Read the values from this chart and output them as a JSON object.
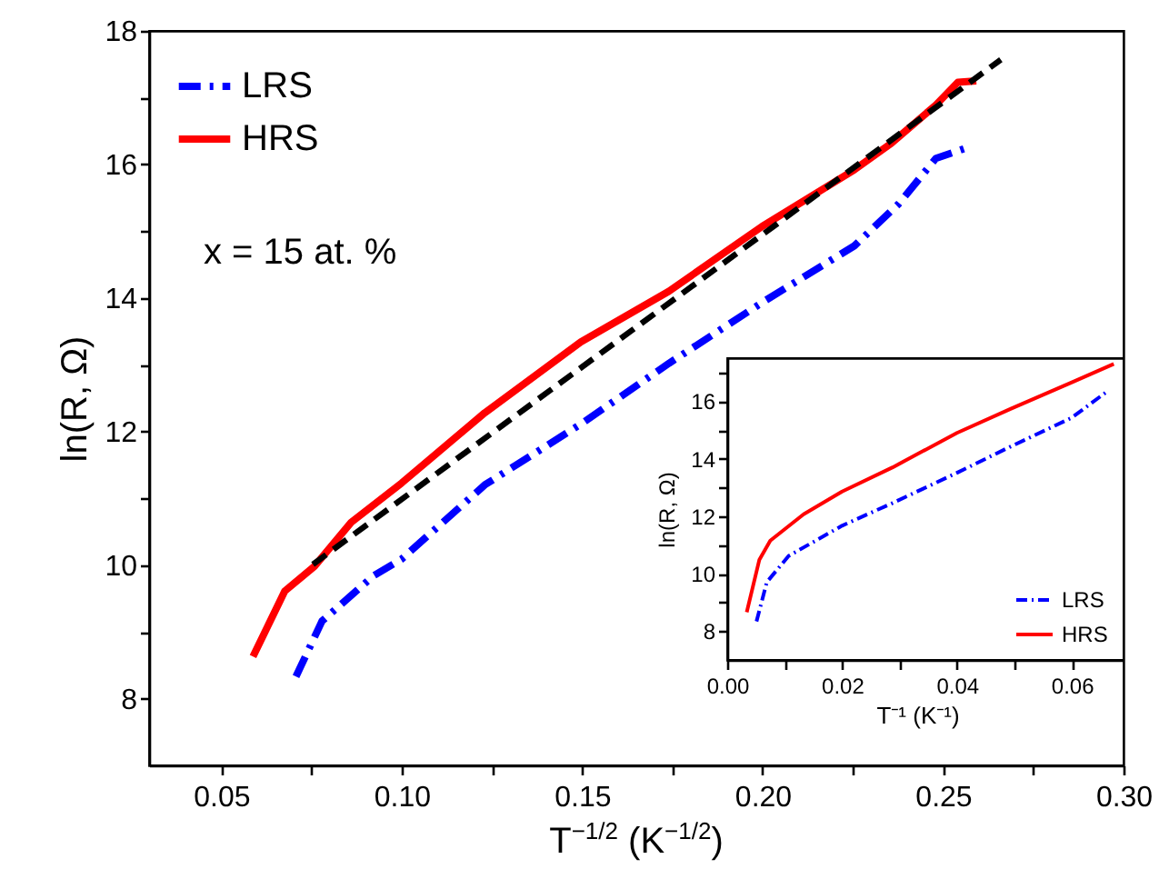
{
  "chart_data": [
    {
      "type": "line",
      "xlabel": "T$^{−1/2}$ (K$^{−1/2}$)",
      "ylabel": "ln(R, Ω)",
      "annotations": [
        "x = 15 at. %"
      ],
      "legend": "top left",
      "xlim": [
        0.03,
        0.3
      ],
      "ylim": [
        7,
        18
      ],
      "xticks": [
        {
          "value": 0.05,
          "label": "0.05"
        },
        {
          "value": 0.075,
          "label": null
        },
        {
          "value": 0.1,
          "label": "0.10"
        },
        {
          "value": 0.125,
          "label": null
        },
        {
          "value": 0.15,
          "label": "0.15"
        },
        {
          "value": 0.175,
          "label": null
        },
        {
          "value": 0.2,
          "label": "0.20"
        },
        {
          "value": 0.225,
          "label": null
        },
        {
          "value": 0.25,
          "label": "0.25"
        },
        {
          "value": 0.275,
          "label": null
        },
        {
          "value": 0.3,
          "label": "0.30"
        }
      ],
      "yticks": [
        8,
        {
          "value": 9,
          "label": null
        },
        10,
        {
          "value": 11,
          "label": null
        },
        12,
        {
          "value": 13,
          "label": null
        },
        14,
        {
          "value": 15,
          "label": null
        },
        16,
        {
          "value": 17,
          "label": null
        },
        18
      ],
      "series": [
        {
          "name": "LRS",
          "color": "#0000ff",
          "line_style": "dashdot",
          "x": [
            0.0707,
            0.0779,
            0.0922,
            0.1,
            0.123,
            0.1496,
            0.174,
            0.1998,
            0.2254,
            0.2377,
            0.248,
            0.2572
          ],
          "values": [
            8.33,
            9.16,
            9.84,
            10.09,
            11.2,
            12.11,
            13.02,
            13.93,
            14.78,
            15.41,
            16.09,
            16.26
          ]
        },
        {
          "name": "HRS",
          "color": "#ff0000",
          "line_style": "solid",
          "x": [
            0.0588,
            0.0676,
            0.0758,
            0.086,
            0.1,
            0.123,
            0.1496,
            0.174,
            0.1998,
            0.2254,
            0.2357,
            0.248,
            0.2541,
            0.2592
          ],
          "values": [
            8.63,
            9.61,
            9.98,
            10.64,
            11.23,
            12.28,
            13.34,
            14.1,
            15.07,
            15.92,
            16.32,
            16.89,
            17.23,
            17.25
          ]
        },
        {
          "type": "line",
          "color": "#000000",
          "line_style": "dashed",
          "x": [
            0.0754,
            0.266
          ],
          "values": [
            10.01,
            17.57
          ]
        }
      ]
    },
    {
      "type": "line",
      "xlabel": "T⁻¹ (K⁻¹)",
      "ylabel": "ln(R, Ω)",
      "legend": "bottom right",
      "xlim": [
        0,
        0.069
      ],
      "ylim": [
        7,
        17.5
      ],
      "xticks": [
        {
          "value": 0,
          "label": "0.00"
        },
        {
          "value": 0.01,
          "label": null
        },
        {
          "value": 0.02,
          "label": "0.02"
        },
        {
          "value": 0.03,
          "label": null
        },
        {
          "value": 0.04,
          "label": "0.04"
        },
        {
          "value": 0.05,
          "label": null
        },
        {
          "value": 0.06,
          "label": "0.06"
        }
      ],
      "yticks": [
        8,
        {
          "value": 9,
          "label": null
        },
        10,
        {
          "value": 11,
          "label": null
        },
        12,
        {
          "value": 13,
          "label": null
        },
        14,
        {
          "value": 15,
          "label": null
        },
        16,
        {
          "value": 17,
          "label": null
        }
      ],
      "series": [
        {
          "name": "LRS",
          "color": "#0000ff",
          "line_style": "dashdot",
          "x": [
            0.0051,
            0.0069,
            0.0107,
            0.02,
            0.0288,
            0.04,
            0.0494,
            0.06,
            0.066
          ],
          "values": [
            8.34,
            9.71,
            10.62,
            11.67,
            12.46,
            13.51,
            14.43,
            15.43,
            16.32
          ]
        },
        {
          "name": "HRS",
          "color": "#ff0000",
          "line_style": "solid",
          "x": [
            0.0034,
            0.0056,
            0.0075,
            0.0133,
            0.02,
            0.0288,
            0.04,
            0.0494,
            0.06,
            0.0673
          ],
          "values": [
            8.66,
            10.49,
            11.15,
            12.07,
            12.86,
            13.7,
            14.9,
            15.74,
            16.66,
            17.3
          ]
        }
      ]
    }
  ]
}
